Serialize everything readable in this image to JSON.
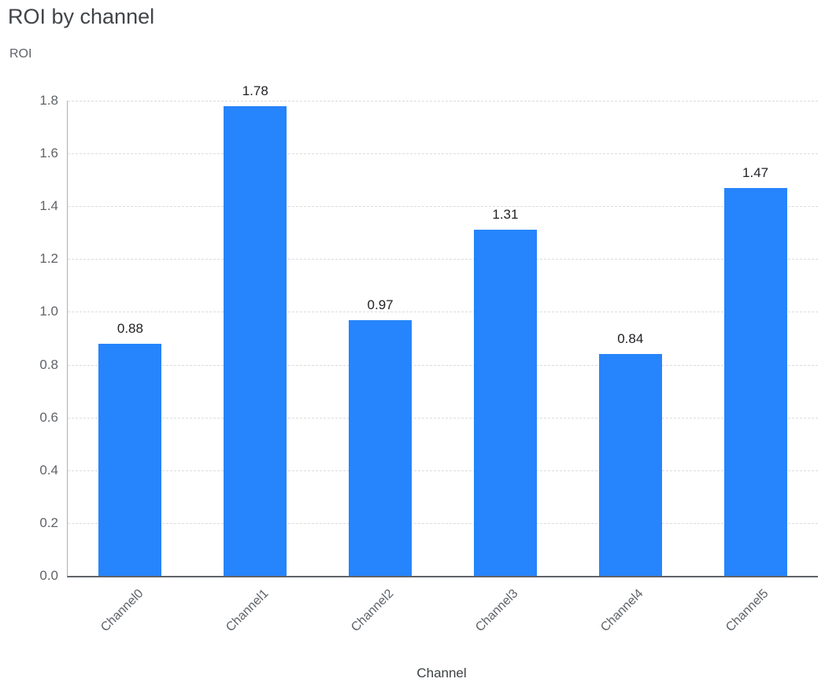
{
  "chart_data": {
    "type": "bar",
    "title": "ROI by channel",
    "xlabel": "Channel",
    "ylabel": "ROI",
    "categories": [
      "Channel0",
      "Channel1",
      "Channel2",
      "Channel3",
      "Channel4",
      "Channel5"
    ],
    "values": [
      0.88,
      1.78,
      0.97,
      1.31,
      0.84,
      1.47
    ],
    "value_labels": [
      "0.88",
      "1.78",
      "0.97",
      "1.31",
      "0.84",
      "1.47"
    ],
    "ylim": [
      0,
      1.8
    ],
    "ytick_step": 0.2,
    "ytick_labels": [
      "0.0",
      "0.2",
      "0.4",
      "0.6",
      "0.8",
      "1.0",
      "1.2",
      "1.4",
      "1.6",
      "1.8"
    ],
    "grid": true,
    "legend_position": "none",
    "bar_color": "#2684fc"
  },
  "colors": {
    "bar": "#2684fc",
    "title_text": "#414549",
    "axis_text": "#5f6368",
    "axis_title_text": "#3c4043",
    "value_label_text": "#202124",
    "gridline": "#d9dcde",
    "axis_line": "#5f6368"
  }
}
